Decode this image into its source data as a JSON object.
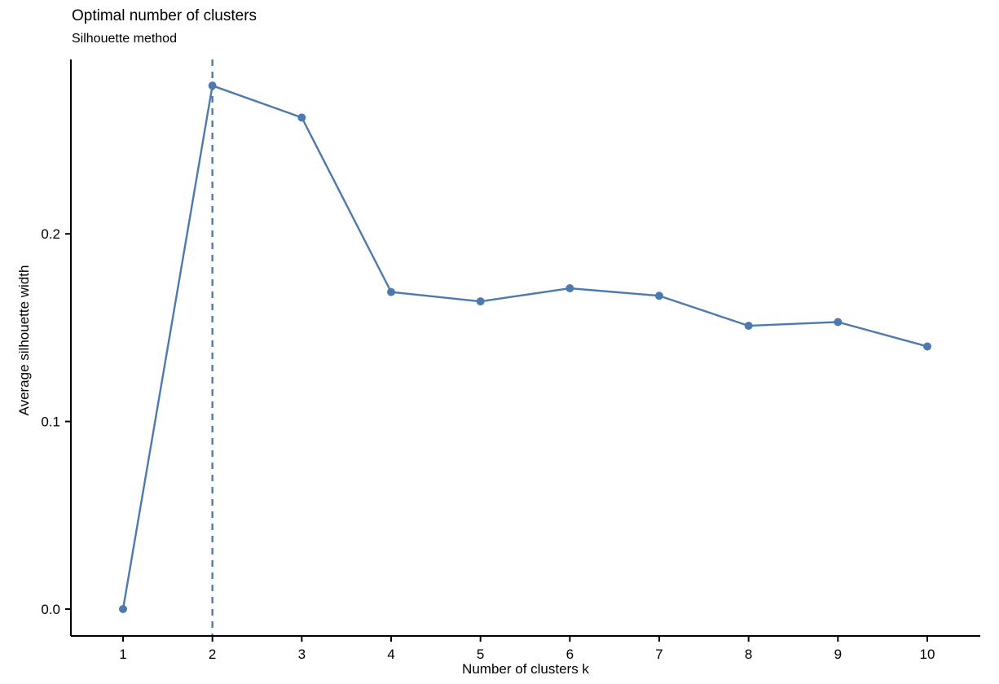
{
  "chart_data": {
    "type": "line",
    "title": "Optimal number of clusters",
    "subtitle": "Silhouette method",
    "xlabel": "Number of clusters k",
    "ylabel": "Average silhouette width",
    "x": [
      1,
      2,
      3,
      4,
      5,
      6,
      7,
      8,
      9,
      10
    ],
    "y": [
      0.0,
      0.279,
      0.262,
      0.169,
      0.164,
      0.171,
      0.167,
      0.151,
      0.153,
      0.14
    ],
    "x_tick_labels": [
      "1",
      "2",
      "3",
      "4",
      "5",
      "6",
      "7",
      "8",
      "9",
      "10"
    ],
    "y_ticks": [
      {
        "value": 0.0,
        "label": "0.0"
      },
      {
        "value": 0.1,
        "label": "0.1"
      },
      {
        "value": 0.2,
        "label": "0.2"
      }
    ],
    "ylim": [
      -0.014,
      0.293
    ],
    "xlim": [
      0.42,
      10.6
    ],
    "optimal_k": 2,
    "vline_x": 2,
    "vline_style": "dashed",
    "grid": false,
    "legend": "none",
    "colors": {
      "series": "#4d79ae",
      "axis": "#000000",
      "text": "#000000",
      "background": "#ffffff"
    }
  }
}
